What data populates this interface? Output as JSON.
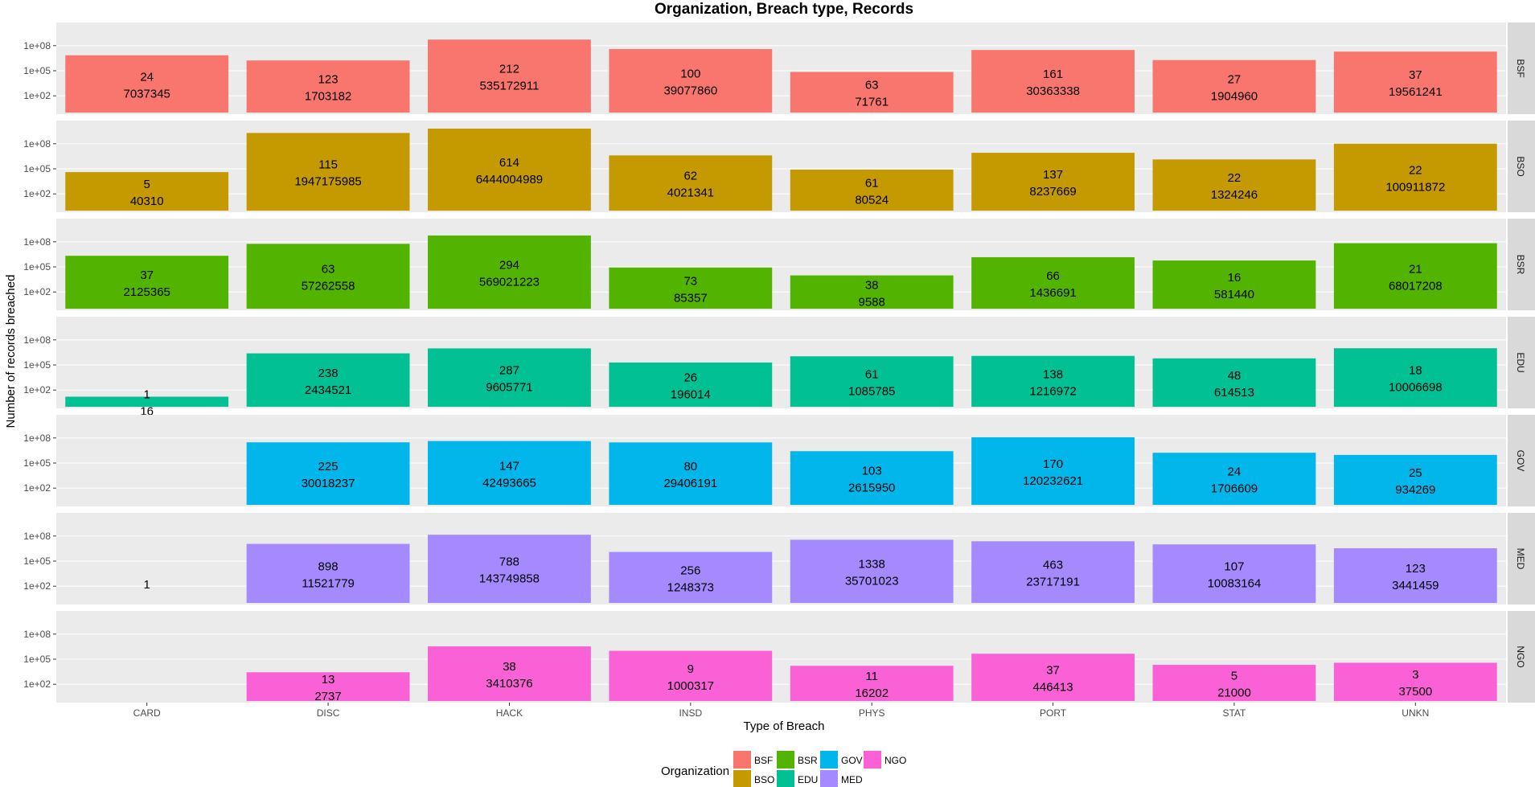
{
  "chart_data": {
    "type": "bar",
    "title": "Organization, Breach type, Records",
    "xlabel": "Type of Breach",
    "ylabel": "Number of records breached",
    "y_scale": "log10",
    "y_ticks": [
      "1e+02",
      "1e+05",
      "1e+08"
    ],
    "ylim": [
      1,
      10000000000
    ],
    "categories": [
      "CARD",
      "DISC",
      "HACK",
      "INSD",
      "PHYS",
      "PORT",
      "STAT",
      "UNKN"
    ],
    "legend_title": "Organization",
    "legend_position": "bottom",
    "series": [
      {
        "name": "BSF",
        "color": "#F8766D",
        "counts": [
          24,
          123,
          212,
          100,
          63,
          161,
          27,
          37
        ],
        "records": [
          7037345,
          1703182,
          535172911,
          39077860,
          71761,
          30363338,
          1904960,
          19561241
        ]
      },
      {
        "name": "BSO",
        "color": "#C49A00",
        "counts": [
          5,
          115,
          614,
          62,
          61,
          137,
          22,
          22
        ],
        "records": [
          40310,
          1947175985,
          6444004989,
          4021341,
          80524,
          8237669,
          1324246,
          100911872
        ]
      },
      {
        "name": "BSR",
        "color": "#53B400",
        "counts": [
          37,
          63,
          294,
          73,
          38,
          66,
          16,
          21
        ],
        "records": [
          2125365,
          57262558,
          569021223,
          85357,
          9588,
          1436691,
          581440,
          68017208
        ]
      },
      {
        "name": "EDU",
        "color": "#00C094",
        "counts": [
          1,
          238,
          287,
          26,
          61,
          138,
          48,
          18
        ],
        "records": [
          16,
          2434521,
          9605771,
          196014,
          1085785,
          1216972,
          614513,
          10006698
        ]
      },
      {
        "name": "GOV",
        "color": "#00B6EB",
        "counts": [
          null,
          225,
          147,
          80,
          103,
          170,
          24,
          25
        ],
        "records": [
          null,
          30018237,
          42493665,
          29406191,
          2615950,
          120232621,
          1706609,
          934269
        ]
      },
      {
        "name": "MED",
        "color": "#A58AFF",
        "counts": [
          1,
          898,
          788,
          256,
          1338,
          463,
          107,
          123
        ],
        "records": [
          0,
          11521779,
          143749858,
          1248373,
          35701023,
          23717191,
          10083164,
          3441459
        ]
      },
      {
        "name": "NGO",
        "color": "#FB61D7",
        "counts": [
          null,
          13,
          38,
          9,
          11,
          37,
          5,
          3
        ],
        "records": [
          null,
          2737,
          3410376,
          1000317,
          16202,
          446413,
          21000,
          37500
        ]
      }
    ]
  }
}
